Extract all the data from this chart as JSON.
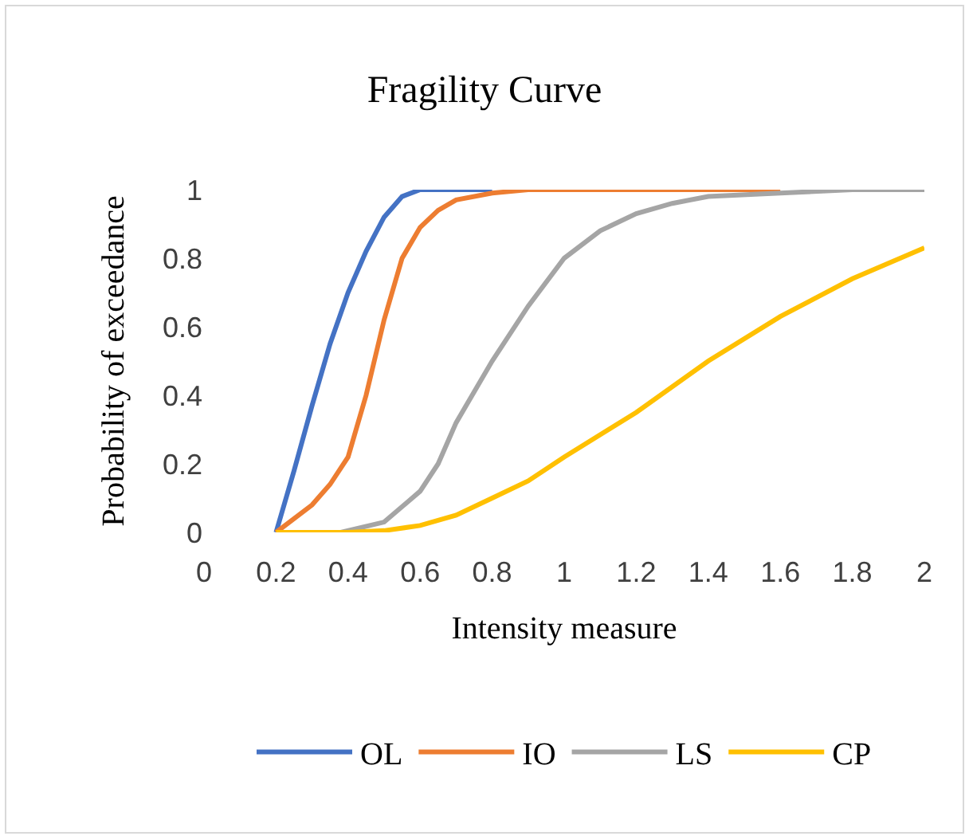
{
  "chart_data": {
    "type": "line",
    "title": "Fragility Curve",
    "xlabel": "Intensity measure",
    "ylabel": "Probability of exceedance",
    "xlim": [
      0,
      2
    ],
    "xticks": [
      0,
      0.2,
      0.4,
      0.6,
      0.8,
      1,
      1.2,
      1.4,
      1.6,
      1.8,
      2
    ],
    "ylim": [
      0,
      1
    ],
    "yticks": [
      0,
      0.2,
      0.4,
      0.6,
      0.8,
      1
    ],
    "grid": false,
    "legend": "bottom",
    "marker": "none",
    "line_style": "solid",
    "series": [
      {
        "name": "OL",
        "color": "#4472c4",
        "x": [
          0.2,
          0.25,
          0.3,
          0.35,
          0.4,
          0.45,
          0.5,
          0.55,
          0.6,
          0.8
        ],
        "values": [
          0,
          0.18,
          0.37,
          0.55,
          0.7,
          0.82,
          0.92,
          0.98,
          1,
          1
        ]
      },
      {
        "name": "IO",
        "color": "#ed7d31",
        "x": [
          0.2,
          0.3,
          0.35,
          0.4,
          0.45,
          0.5,
          0.55,
          0.6,
          0.65,
          0.7,
          0.8,
          0.9,
          1.2,
          1.6
        ],
        "values": [
          0,
          0.08,
          0.14,
          0.22,
          0.4,
          0.62,
          0.8,
          0.89,
          0.94,
          0.97,
          0.99,
          1,
          1,
          1
        ]
      },
      {
        "name": "LS",
        "color": "#a5a5a5",
        "x": [
          0.38,
          0.5,
          0.6,
          0.65,
          0.7,
          0.8,
          0.9,
          1,
          1.1,
          1.2,
          1.3,
          1.4,
          1.6,
          1.8,
          2
        ],
        "values": [
          0,
          0.03,
          0.12,
          0.2,
          0.32,
          0.5,
          0.66,
          0.8,
          0.88,
          0.93,
          0.96,
          0.98,
          0.99,
          1,
          1
        ]
      },
      {
        "name": "CP",
        "color": "#ffc000",
        "x": [
          0.2,
          0.4,
          0.5,
          0.6,
          0.7,
          0.8,
          0.9,
          1,
          1.2,
          1.4,
          1.6,
          1.8,
          2
        ],
        "values": [
          0,
          0,
          0.005,
          0.02,
          0.05,
          0.1,
          0.15,
          0.22,
          0.35,
          0.5,
          0.63,
          0.74,
          0.83
        ]
      }
    ]
  }
}
